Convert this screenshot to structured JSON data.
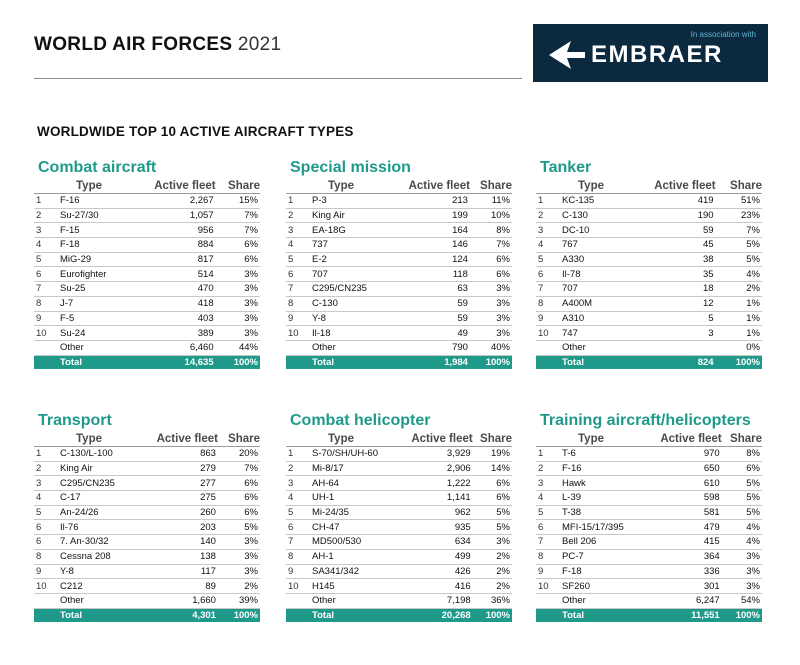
{
  "header": {
    "title": "WORLD AIR FORCES",
    "year": "2021"
  },
  "sponsor": {
    "assoc": "In association with",
    "brand": "EMBRAER"
  },
  "subtitle": "WORLDWIDE TOP 10 ACTIVE AIRCRAFT TYPES",
  "columns": {
    "type": "Type",
    "fleet": "Active fleet",
    "share": "Share"
  },
  "panels": [
    {
      "title": "Combat aircraft",
      "rows": [
        [
          "1",
          "F-16",
          "2,267",
          "15%"
        ],
        [
          "2",
          "Su-27/30",
          "1,057",
          "7%"
        ],
        [
          "3",
          "F-15",
          "956",
          "7%"
        ],
        [
          "4",
          "F-18",
          "884",
          "6%"
        ],
        [
          "5",
          "MiG-29",
          "817",
          "6%"
        ],
        [
          "6",
          "Eurofighter",
          "514",
          "3%"
        ],
        [
          "7",
          "Su-25",
          "470",
          "3%"
        ],
        [
          "8",
          "J-7",
          "418",
          "3%"
        ],
        [
          "9",
          "F-5",
          "403",
          "3%"
        ],
        [
          "10",
          "Su-24",
          "389",
          "3%"
        ],
        [
          "",
          "Other",
          "6,460",
          "44%"
        ]
      ],
      "total": [
        "",
        "Total",
        "14,635",
        "100%"
      ]
    },
    {
      "title": "Special mission",
      "rows": [
        [
          "1",
          "P-3",
          "213",
          "11%"
        ],
        [
          "2",
          "King Air",
          "199",
          "10%"
        ],
        [
          "3",
          "EA-18G",
          "164",
          "8%"
        ],
        [
          "4",
          "737",
          "146",
          "7%"
        ],
        [
          "5",
          "E-2",
          "124",
          "6%"
        ],
        [
          "6",
          "707",
          "118",
          "6%"
        ],
        [
          "7",
          "C295/CN235",
          "63",
          "3%"
        ],
        [
          "8",
          "C-130",
          "59",
          "3%"
        ],
        [
          "9",
          "Y-8",
          "59",
          "3%"
        ],
        [
          "10",
          "Il-18",
          "49",
          "3%"
        ],
        [
          "",
          "Other",
          "790",
          "40%"
        ]
      ],
      "total": [
        "",
        "Total",
        "1,984",
        "100%"
      ]
    },
    {
      "title": "Tanker",
      "rows": [
        [
          "1",
          "KC-135",
          "419",
          "51%"
        ],
        [
          "2",
          "C-130",
          "190",
          "23%"
        ],
        [
          "3",
          "DC-10",
          "59",
          "7%"
        ],
        [
          "4",
          "767",
          "45",
          "5%"
        ],
        [
          "5",
          "A330",
          "38",
          "5%"
        ],
        [
          "6",
          "Il-78",
          "35",
          "4%"
        ],
        [
          "7",
          "707",
          "18",
          "2%"
        ],
        [
          "8",
          "A400M",
          "12",
          "1%"
        ],
        [
          "9",
          "A310",
          "5",
          "1%"
        ],
        [
          "10",
          "747",
          "3",
          "1%"
        ],
        [
          "",
          "Other",
          "",
          "0%"
        ]
      ],
      "total": [
        "",
        "Total",
        "824",
        "100%"
      ]
    },
    {
      "title": "Transport",
      "rows": [
        [
          "1",
          "C-130/L-100",
          "863",
          "20%"
        ],
        [
          "2",
          "King Air",
          "279",
          "7%"
        ],
        [
          "3",
          "C295/CN235",
          "277",
          "6%"
        ],
        [
          "4",
          "C-17",
          "275",
          "6%"
        ],
        [
          "5",
          "An-24/26",
          "260",
          "6%"
        ],
        [
          "6",
          "Il-76",
          "203",
          "5%"
        ],
        [
          "6",
          "7. An-30/32",
          "140",
          "3%"
        ],
        [
          "8",
          "Cessna 208",
          "138",
          "3%"
        ],
        [
          "9",
          "Y-8",
          "117",
          "3%"
        ],
        [
          "10",
          "C212",
          "89",
          "2%"
        ],
        [
          "",
          "Other",
          "1,660",
          "39%"
        ]
      ],
      "total": [
        "",
        "Total",
        "4,301",
        "100%"
      ]
    },
    {
      "title": "Combat helicopter",
      "rows": [
        [
          "1",
          "S-70/SH/UH-60",
          "3,929",
          "19%"
        ],
        [
          "2",
          "Mi-8/17",
          "2,906",
          "14%"
        ],
        [
          "3",
          "AH-64",
          "1,222",
          "6%"
        ],
        [
          "4",
          "UH-1",
          "1,141",
          "6%"
        ],
        [
          "5",
          "Mi-24/35",
          "962",
          "5%"
        ],
        [
          "6",
          "CH-47",
          "935",
          "5%"
        ],
        [
          "7",
          "MD500/530",
          "634",
          "3%"
        ],
        [
          "8",
          "AH-1",
          "499",
          "2%"
        ],
        [
          "9",
          "SA341/342",
          "426",
          "2%"
        ],
        [
          "10",
          "H145",
          "416",
          "2%"
        ],
        [
          "",
          "Other",
          "7,198",
          "36%"
        ]
      ],
      "total": [
        "",
        "Total",
        "20,268",
        "100%"
      ]
    },
    {
      "title": "Training aircraft/helicopters",
      "rows": [
        [
          "1",
          "T-6",
          "970",
          "8%"
        ],
        [
          "2",
          "F-16",
          "650",
          "6%"
        ],
        [
          "3",
          "Hawk",
          "610",
          "5%"
        ],
        [
          "4",
          "L-39",
          "598",
          "5%"
        ],
        [
          "5",
          "T-38",
          "581",
          "5%"
        ],
        [
          "6",
          "MFI-15/17/395",
          "479",
          "4%"
        ],
        [
          "7",
          "Bell 206",
          "415",
          "4%"
        ],
        [
          "8",
          "PC-7",
          "364",
          "3%"
        ],
        [
          "9",
          "F-18",
          "336",
          "3%"
        ],
        [
          "10",
          "SF260",
          "301",
          "3%"
        ],
        [
          "",
          "Other",
          "6,247",
          "54%"
        ]
      ],
      "total": [
        "",
        "Total",
        "11,551",
        "100%"
      ]
    }
  ]
}
